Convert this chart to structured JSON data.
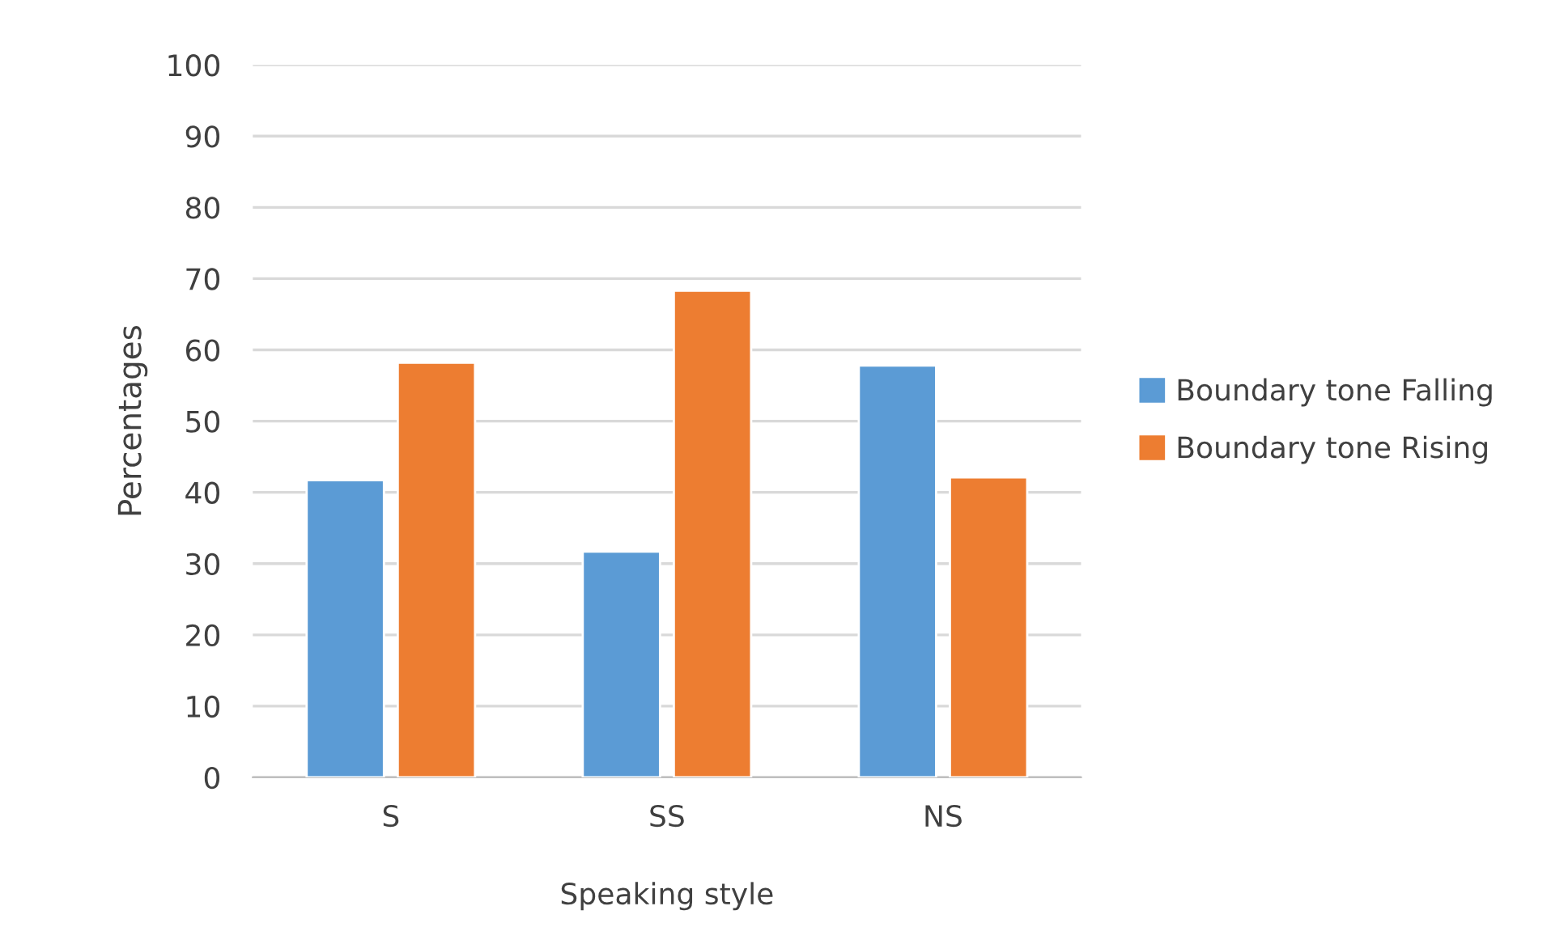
{
  "chart_data": {
    "type": "bar",
    "xlabel": "Speaking style",
    "ylabel": "Percentages",
    "categories": [
      "S",
      "SS",
      "NS"
    ],
    "series": [
      {
        "name": "Boundary tone Falling",
        "color": "#5b9bd5",
        "values": [
          41.7,
          31.7,
          57.8
        ]
      },
      {
        "name": "Boundary tone Rising",
        "color": "#ed7d31",
        "values": [
          58.2,
          68.3,
          42.1
        ]
      }
    ],
    "ylim": [
      0,
      100
    ],
    "yticks": [
      0,
      10,
      20,
      30,
      40,
      50,
      60,
      70,
      80,
      90,
      100
    ],
    "grid": "y",
    "legend": "right"
  }
}
